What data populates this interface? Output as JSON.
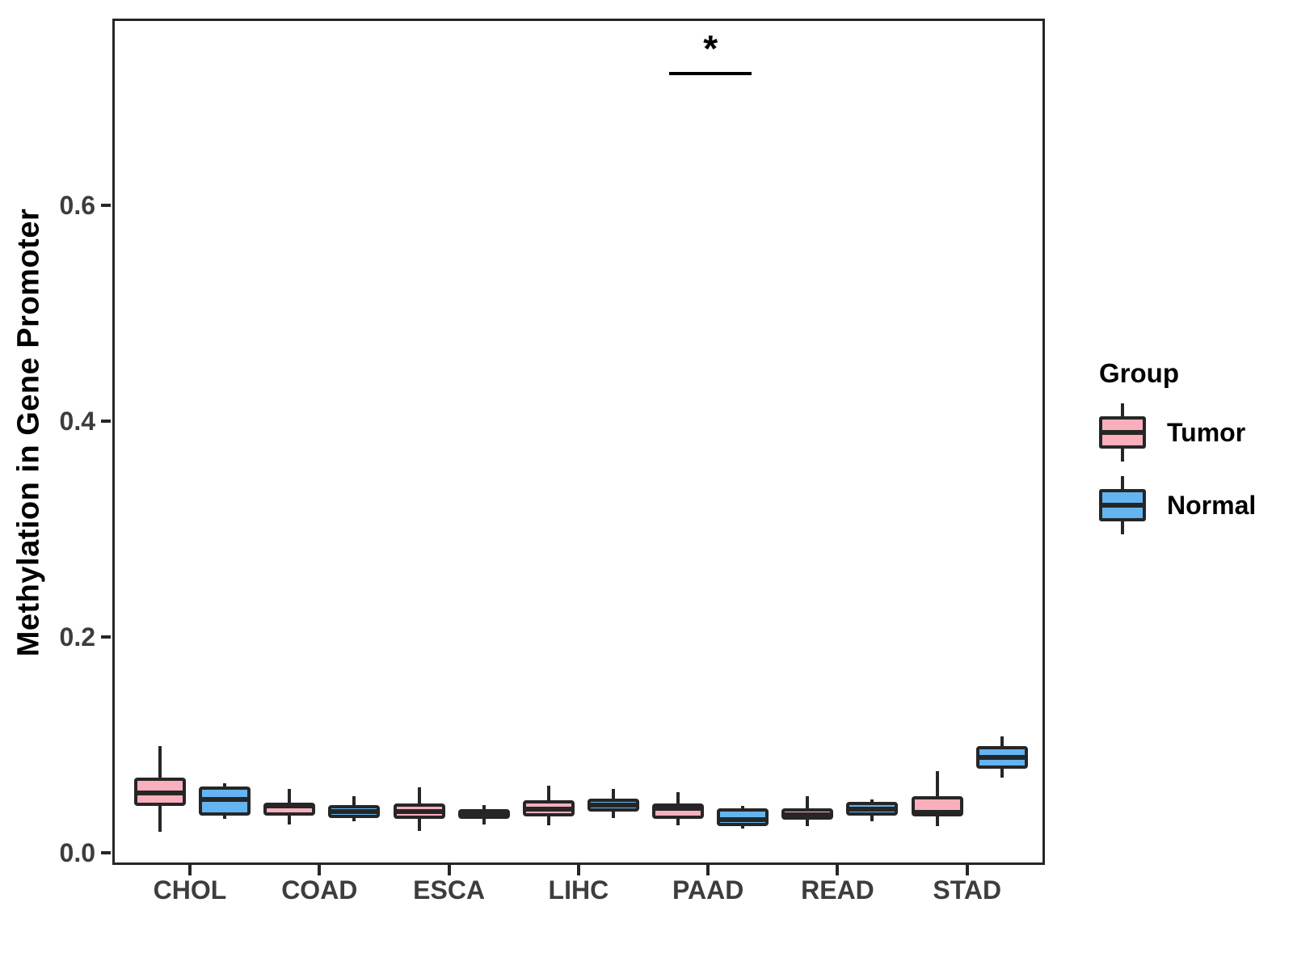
{
  "ylabel": "Methylation in Gene Promoter",
  "legend": {
    "title": "Group",
    "items": [
      {
        "label": "Tumor",
        "color": "#F9AFBC"
      },
      {
        "label": "Normal",
        "color": "#63B4F0"
      }
    ]
  },
  "chart_data": {
    "type": "grouped_boxplot",
    "title": "",
    "xlabel": "",
    "ylabel": "Methylation in Gene Promoter",
    "categories": [
      "CHOL",
      "COAD",
      "ESCA",
      "LIHC",
      "PAAD",
      "READ",
      "STAD"
    ],
    "yticks": [
      0.0,
      0.2,
      0.4,
      0.6
    ],
    "ylim": [
      -0.011,
      0.773
    ],
    "grid": false,
    "legend_position": "right",
    "series": [
      {
        "name": "Tumor",
        "color": "#F9AFBC",
        "boxes": [
          {
            "min": 0.022,
            "q1": 0.046,
            "median": 0.058,
            "q3": 0.072,
            "max": 0.101
          },
          {
            "min": 0.029,
            "q1": 0.037,
            "median": 0.046,
            "q3": 0.049,
            "max": 0.062
          },
          {
            "min": 0.023,
            "q1": 0.034,
            "median": 0.041,
            "q3": 0.048,
            "max": 0.063
          },
          {
            "min": 0.028,
            "q1": 0.036,
            "median": 0.043,
            "q3": 0.051,
            "max": 0.065
          },
          {
            "min": 0.028,
            "q1": 0.034,
            "median": 0.044,
            "q3": 0.048,
            "max": 0.059
          },
          {
            "min": 0.027,
            "q1": 0.033,
            "median": 0.038,
            "q3": 0.044,
            "max": 0.055
          },
          {
            "min": 0.027,
            "q1": 0.036,
            "median": 0.04,
            "q3": 0.055,
            "max": 0.078
          }
        ]
      },
      {
        "name": "Normal",
        "color": "#63B4F0",
        "boxes": [
          {
            "min": 0.034,
            "q1": 0.037,
            "median": 0.052,
            "q3": 0.064,
            "max": 0.067
          },
          {
            "min": 0.032,
            "q1": 0.035,
            "median": 0.041,
            "q3": 0.047,
            "max": 0.055
          },
          {
            "min": 0.029,
            "q1": 0.034,
            "median": 0.038,
            "q3": 0.043,
            "max": 0.047
          },
          {
            "min": 0.035,
            "q1": 0.041,
            "median": 0.047,
            "q3": 0.053,
            "max": 0.062
          },
          {
            "min": 0.025,
            "q1": 0.027,
            "median": 0.033,
            "q3": 0.044,
            "max": 0.046
          },
          {
            "min": 0.032,
            "q1": 0.037,
            "median": 0.043,
            "q3": 0.05,
            "max": 0.052
          },
          {
            "min": 0.072,
            "q1": 0.08,
            "median": 0.091,
            "q3": 0.101,
            "max": 0.11
          }
        ]
      }
    ],
    "annotation": {
      "symbol": "*",
      "category": "PAAD",
      "between": [
        "Tumor",
        "Normal"
      ],
      "y": 0.726
    }
  }
}
